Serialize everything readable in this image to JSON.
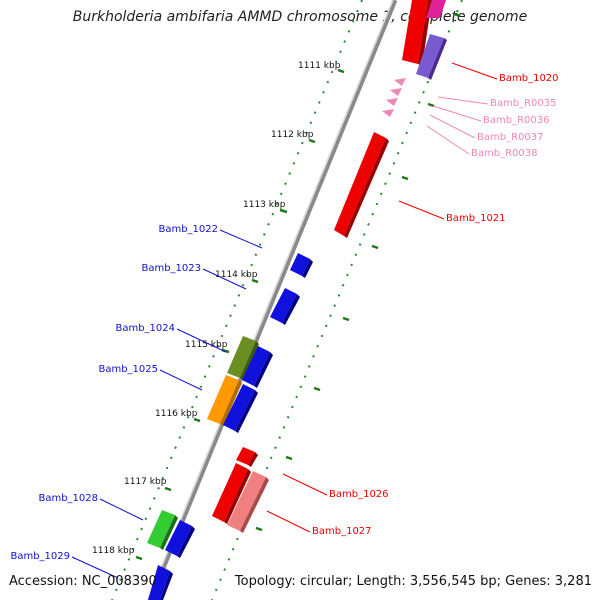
{
  "title": "Burkholderia ambifaria AMMD chromosome 1, complete genome",
  "footer": {
    "accession": "Accession: NC_008390",
    "summary": "Topology: circular; Length: 3,556,545 bp; Genes: 3,281"
  },
  "ticks": [
    {
      "label": "1111 kbp"
    },
    {
      "label": "1112 kbp"
    },
    {
      "label": "1113 kbp"
    },
    {
      "label": "1114 kbp"
    },
    {
      "label": "1115 kbp"
    },
    {
      "label": "1116 kbp"
    },
    {
      "label": "1117 kbp"
    },
    {
      "label": "1118 kbp"
    }
  ],
  "genes": [
    {
      "label": "Bamb_1020",
      "color": "#ee0000"
    },
    {
      "label": "Bamb_R0035",
      "color": "#ee88bb"
    },
    {
      "label": "Bamb_R0036",
      "color": "#ee88bb"
    },
    {
      "label": "Bamb_R0037",
      "color": "#ee88bb"
    },
    {
      "label": "Bamb_R0038",
      "color": "#ee88bb"
    },
    {
      "label": "Bamb_1021",
      "color": "#ee0000"
    },
    {
      "label": "Bamb_1022",
      "color": "#1111cc"
    },
    {
      "label": "Bamb_1023",
      "color": "#1111cc"
    },
    {
      "label": "Bamb_1024",
      "color": "#1111cc"
    },
    {
      "label": "Bamb_1025",
      "color": "#1111cc"
    },
    {
      "label": "Bamb_1026",
      "color": "#ee0000"
    },
    {
      "label": "Bamb_1027",
      "color": "#ee0000"
    },
    {
      "label": "Bamb_1028",
      "color": "#1111cc"
    },
    {
      "label": "Bamb_1029",
      "color": "#1111cc"
    }
  ]
}
